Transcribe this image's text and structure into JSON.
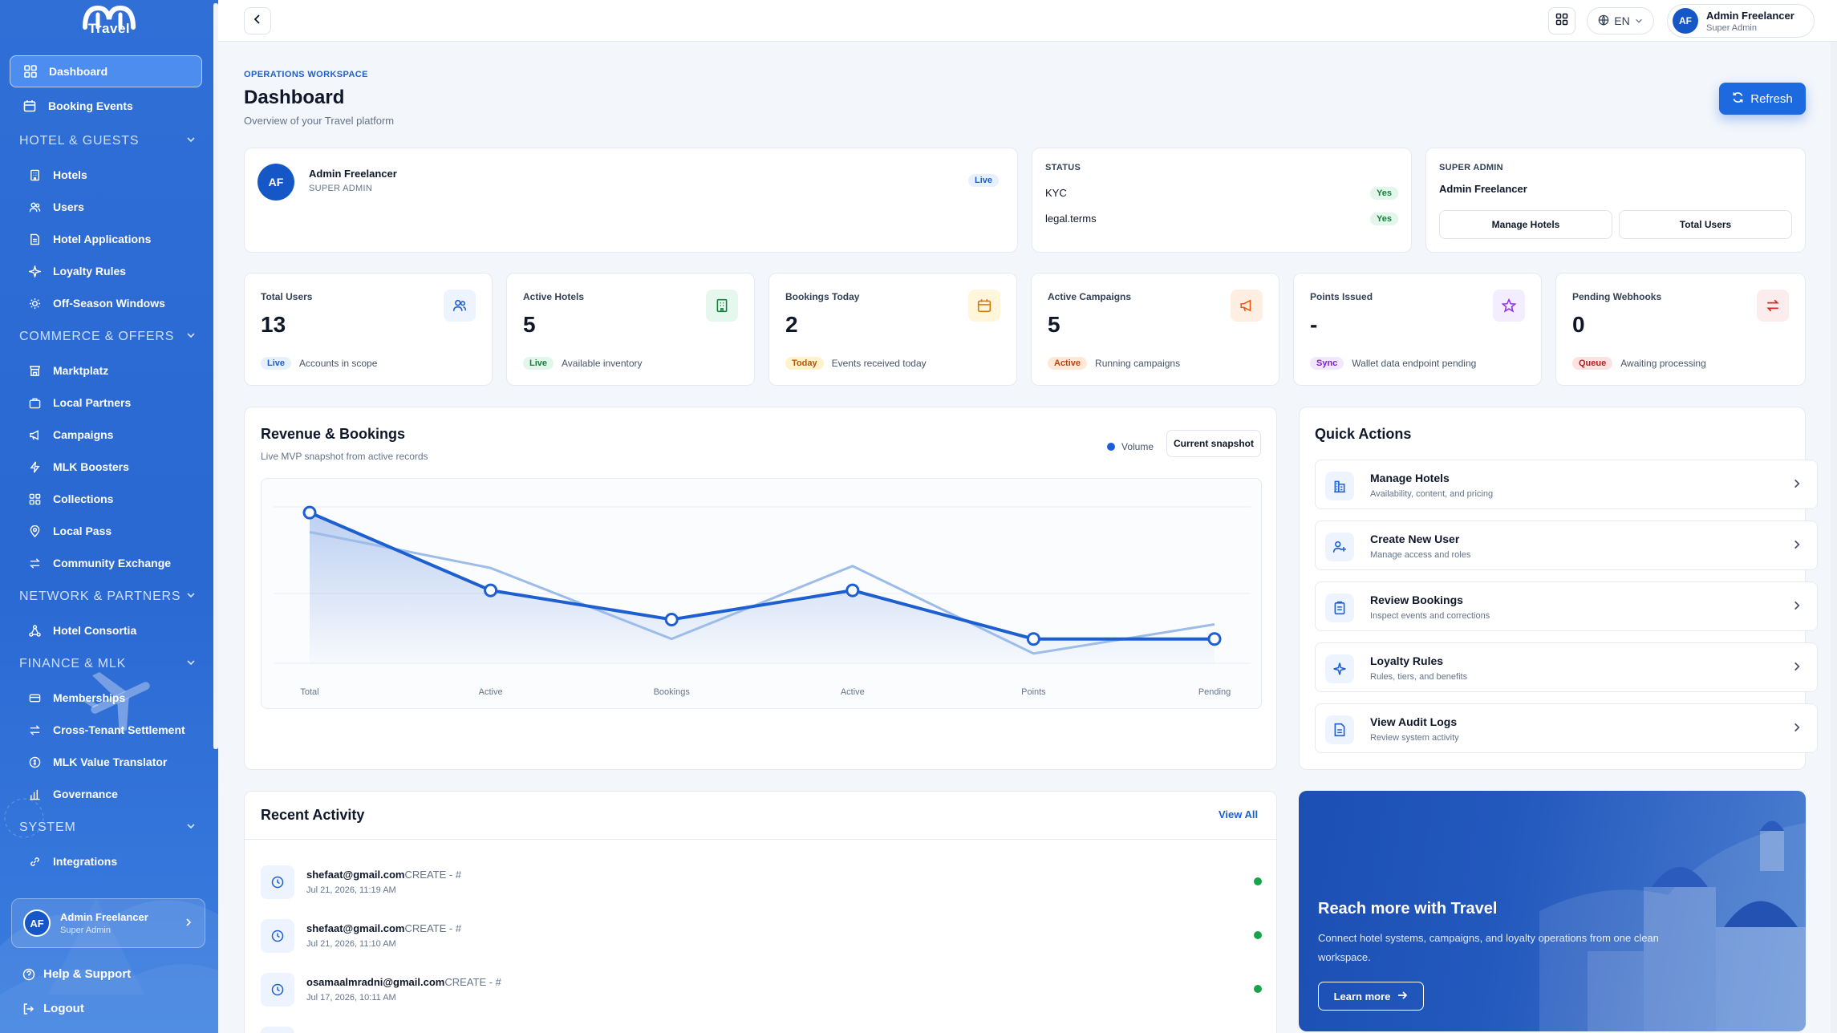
{
  "brand": {
    "name": "Travel"
  },
  "topbar": {
    "language": "EN",
    "user_name": "Admin Freelancer",
    "user_role": "Super Admin",
    "user_initials": "AF"
  },
  "sidebar": {
    "top_items": [
      {
        "label": "Dashboard",
        "icon": "grid-icon",
        "active": true
      },
      {
        "label": "Booking Events",
        "icon": "calendar-icon"
      }
    ],
    "sections": [
      {
        "title": "HOTEL & GUESTS",
        "items": [
          "Hotels",
          "Users",
          "Hotel Applications",
          "Loyalty Rules",
          "Off-Season Windows"
        ]
      },
      {
        "title": "COMMERCE & OFFERS",
        "items": [
          "Marktplatz",
          "Local Partners",
          "Campaigns",
          "MLK Boosters",
          "Collections",
          "Local Pass",
          "Community Exchange"
        ]
      },
      {
        "title": "NETWORK & PARTNERS",
        "items": [
          "Hotel Consortia"
        ]
      },
      {
        "title": "FINANCE & MLK",
        "items": [
          "Memberships",
          "Cross-Tenant Settlement",
          "MLK Value Translator",
          "Governance"
        ]
      },
      {
        "title": "SYSTEM",
        "items": [
          "Integrations"
        ]
      }
    ],
    "profile": {
      "initials": "AF",
      "name": "Admin Freelancer",
      "role": "Super Admin"
    },
    "help": "Help & Support",
    "logout": "Logout"
  },
  "header": {
    "eyebrow": "OPERATIONS WORKSPACE",
    "title": "Dashboard",
    "subtitle": "Overview of your Travel platform",
    "refresh": "Refresh"
  },
  "profile_card": {
    "initials": "AF",
    "name": "Admin Freelancer",
    "role": "SUPER ADMIN",
    "badge": "Live"
  },
  "status_card": {
    "label": "STATUS",
    "rows": [
      {
        "key": "KYC",
        "value": "Yes"
      },
      {
        "key": "legal.terms",
        "value": "Yes"
      }
    ]
  },
  "admin_card": {
    "label": "SUPER ADMIN",
    "name": "Admin Freelancer",
    "buttons": [
      "Manage Hotels",
      "Total Users"
    ]
  },
  "stats": [
    {
      "title": "Total Users",
      "value": "13",
      "badge": "Live",
      "note": "Accounts in scope",
      "tone": "blue",
      "icon": "users-icon",
      "color": "#1d5fd1",
      "bg": "#eef4ff"
    },
    {
      "title": "Active Hotels",
      "value": "5",
      "badge": "Live",
      "note": "Available inventory",
      "tone": "green",
      "icon": "building-icon",
      "color": "#15803d",
      "bg": "#e6f7ee"
    },
    {
      "title": "Bookings Today",
      "value": "2",
      "badge": "Today",
      "note": "Events received today",
      "tone": "yellow",
      "icon": "calendar-icon",
      "color": "#d97706",
      "bg": "#fff6dc"
    },
    {
      "title": "Active Campaigns",
      "value": "5",
      "badge": "Active",
      "note": "Running campaigns",
      "tone": "orange",
      "icon": "megaphone-icon",
      "color": "#ea580c",
      "bg": "#ffeee2"
    },
    {
      "title": "Points Issued",
      "value": "-",
      "badge": "Sync",
      "note": "Wallet data endpoint pending",
      "tone": "purple",
      "icon": "star-icon",
      "color": "#9333ea",
      "bg": "#f4ecff"
    },
    {
      "title": "Pending Webhooks",
      "value": "0",
      "badge": "Queue",
      "note": "Awaiting processing",
      "tone": "red",
      "icon": "swap-icon",
      "color": "#dc2626",
      "bg": "#fdecec"
    }
  ],
  "revenue": {
    "title": "Revenue & Bookings",
    "subtitle": "Live MVP snapshot from active records",
    "legend": "Volume",
    "snapshot_button": "Current snapshot"
  },
  "chart_data": {
    "type": "line",
    "categories": [
      "Total",
      "Active",
      "Bookings",
      "Active",
      "Points",
      "Pending"
    ],
    "series": [
      {
        "name": "Volume",
        "values": [
          13,
          5,
          2,
          5,
          0,
          0
        ],
        "color": "#1d5fd1"
      },
      {
        "values": [
          11,
          7.3,
          0,
          7.5,
          -1.5,
          1.5
        ],
        "color": "#9cbcea"
      }
    ],
    "ylim": [
      -2.5,
      14
    ]
  },
  "quick_actions": {
    "title": "Quick Actions",
    "items": [
      {
        "title": "Manage Hotels",
        "sub": "Availability, content, and pricing",
        "icon": "hotel-icon"
      },
      {
        "title": "Create New User",
        "sub": "Manage access and roles",
        "icon": "user-plus-icon"
      },
      {
        "title": "Review Bookings",
        "sub": "Inspect events and corrections",
        "icon": "clipboard-icon"
      },
      {
        "title": "Loyalty Rules",
        "sub": "Rules, tiers, and benefits",
        "icon": "sparkle-icon"
      },
      {
        "title": "View Audit Logs",
        "sub": "Review system activity",
        "icon": "file-icon"
      }
    ]
  },
  "activity": {
    "title": "Recent Activity",
    "view_all": "View All",
    "items": [
      {
        "email": "shefaat@gmail.com",
        "action": "CREATE - #",
        "time": "Jul 21, 2026, 11:19 AM"
      },
      {
        "email": "shefaat@gmail.com",
        "action": "CREATE - #",
        "time": "Jul 21, 2026, 11:10 AM"
      },
      {
        "email": "osamaalmradni@gmail.com",
        "action": "CREATE - #",
        "time": "Jul 17, 2026, 10:11 AM"
      }
    ]
  },
  "promo": {
    "title": "Reach more with Travel",
    "text": "Connect hotel systems, campaigns, and loyalty operations from one clean workspace.",
    "button": "Learn more"
  }
}
